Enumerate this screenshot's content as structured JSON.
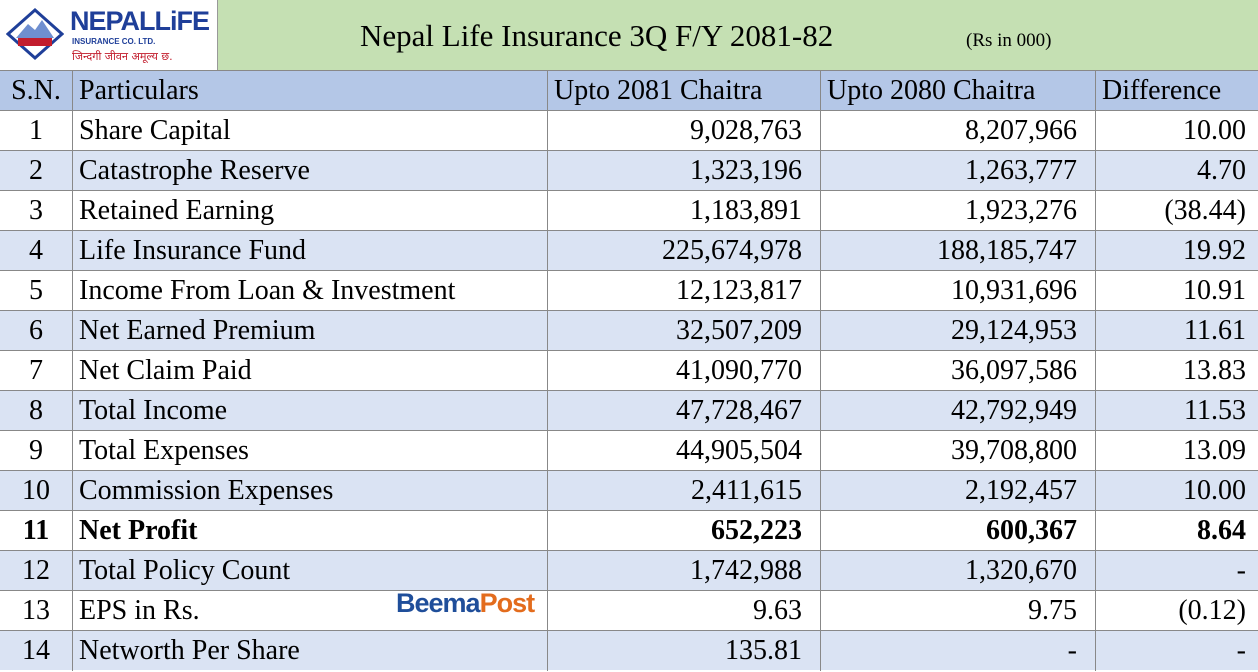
{
  "header": {
    "logo": {
      "name": "NEPALLiFE",
      "company": "INSURANCE CO. LTD.",
      "tagline": "जिन्दगी जीवन अमूल्य छ."
    },
    "title": "Nepal Life Insurance 3Q F/Y 2081-82",
    "unit_note": "(Rs in 000)"
  },
  "watermark": {
    "left": "Beema",
    "right": "Post"
  },
  "table": {
    "header": [
      "S.N.",
      "Particulars",
      "Upto 2081 Chaitra",
      "Upto 2080 Chaitra",
      "Difference"
    ],
    "rows": [
      [
        "1",
        "Share Capital",
        "9,028,763",
        "8,207,966",
        "10.00"
      ],
      [
        "2",
        "Catastrophe Reserve",
        "1,323,196",
        "1,263,777",
        "4.70"
      ],
      [
        "3",
        "Retained Earning",
        "1,183,891",
        "1,923,276",
        "(38.44)"
      ],
      [
        "4",
        "Life Insurance Fund",
        "225,674,978",
        "188,185,747",
        "19.92"
      ],
      [
        "5",
        "Income From Loan & Investment",
        "12,123,817",
        "10,931,696",
        "10.91"
      ],
      [
        "6",
        "Net Earned Premium",
        "32,507,209",
        "29,124,953",
        "11.61"
      ],
      [
        "7",
        "Net Claim Paid",
        "41,090,770",
        "36,097,586",
        "13.83"
      ],
      [
        "8",
        "Total Income",
        "47,728,467",
        "42,792,949",
        "11.53"
      ],
      [
        "9",
        "Total Expenses",
        "44,905,504",
        "39,708,800",
        "13.09"
      ],
      [
        "10",
        "Commission Expenses",
        "2,411,615",
        "2,192,457",
        "10.00"
      ],
      [
        "11",
        "Net Profit",
        "652,223",
        "600,367",
        "8.64"
      ],
      [
        "12",
        "Total Policy Count",
        "1,742,988",
        "1,320,670",
        "-"
      ],
      [
        "13",
        "EPS in Rs.",
        "9.63",
        "9.75",
        "(0.12)"
      ],
      [
        "14",
        "Networth Per Share",
        "135.81",
        "-",
        "-"
      ]
    ],
    "bold_row": 10
  }
}
